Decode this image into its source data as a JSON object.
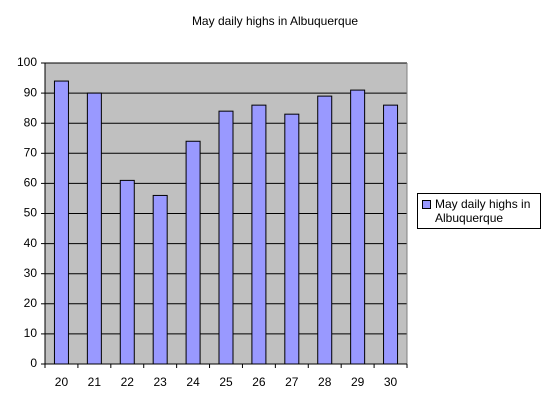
{
  "chart_data": {
    "type": "bar",
    "title": "May daily highs in Albuquerque",
    "categories": [
      "20",
      "21",
      "22",
      "23",
      "24",
      "25",
      "26",
      "27",
      "28",
      "29",
      "30"
    ],
    "series": [
      {
        "name": "May daily highs in Albuquerque",
        "color": "#9999ff",
        "values": [
          94,
          90,
          61,
          56,
          74,
          84,
          86,
          83,
          89,
          91,
          86
        ]
      }
    ],
    "ylim": [
      0,
      100
    ],
    "yticks": [
      0,
      10,
      20,
      30,
      40,
      50,
      60,
      70,
      80,
      90,
      100
    ],
    "grid": true,
    "legend": "right"
  }
}
